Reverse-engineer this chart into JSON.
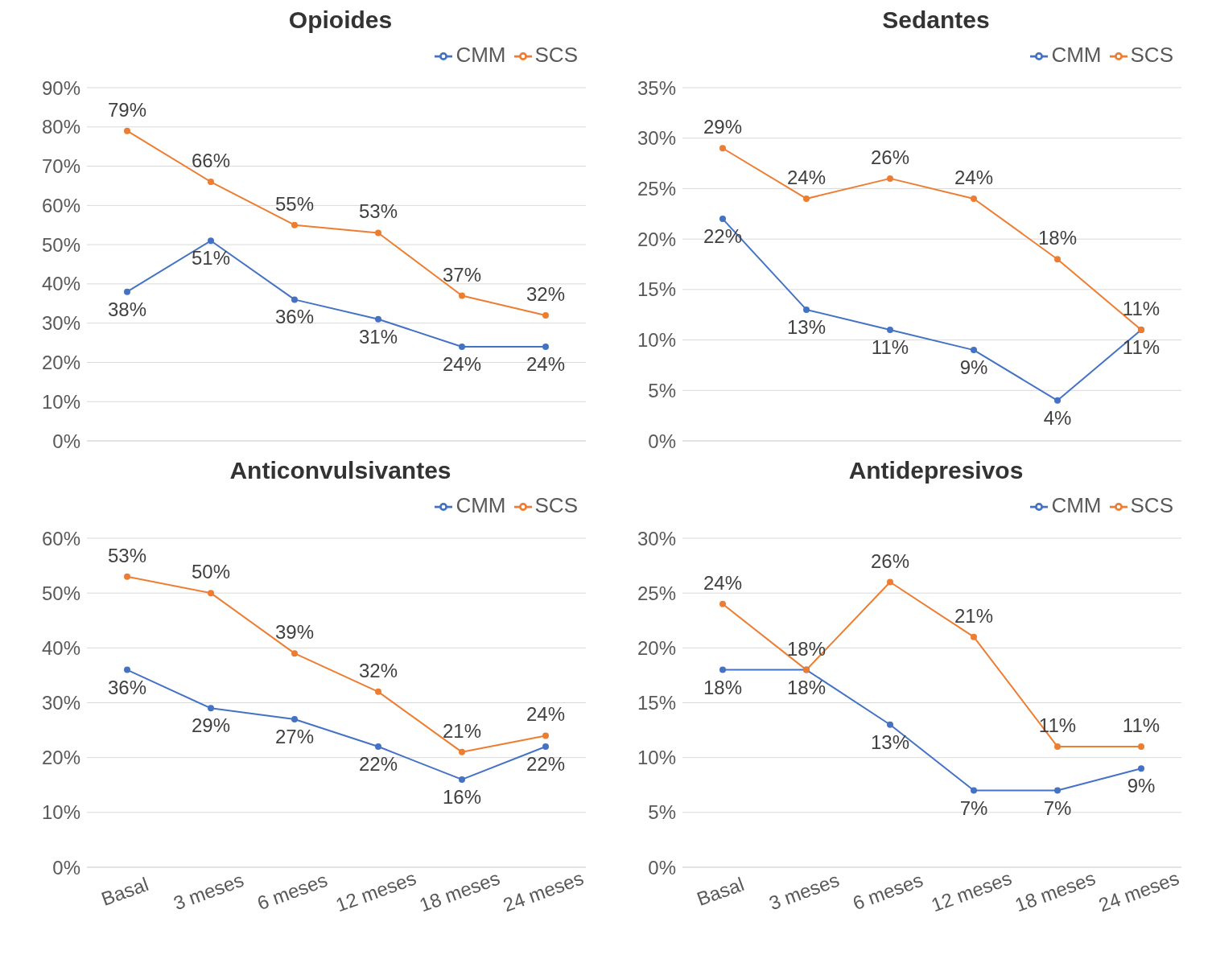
{
  "chart_data": [
    {
      "type": "line",
      "title": "Opioides",
      "categories": [
        null,
        null,
        null,
        null,
        null,
        null
      ],
      "tick_labels": "y",
      "ylim": [
        0,
        90
      ],
      "yticks": [
        {
          "value": 0,
          "label": "0%"
        },
        {
          "value": 10,
          "label": "10%"
        },
        {
          "value": 20,
          "label": "20%"
        },
        {
          "value": 30,
          "label": "30%"
        },
        {
          "value": 40,
          "label": "40%"
        },
        {
          "value": 50,
          "label": "50%"
        },
        {
          "value": 60,
          "label": "60%"
        },
        {
          "value": 70,
          "label": "70%"
        },
        {
          "value": 80,
          "label": "80%"
        },
        {
          "value": 90,
          "label": "90%"
        }
      ],
      "grid": "y",
      "legend": "top right",
      "marker": "circle",
      "line_style": "solid",
      "series": [
        {
          "name": "CMM",
          "color": "#4472c4",
          "values": [
            38,
            51,
            36,
            31,
            24,
            24
          ],
          "value_labels": [
            "38%",
            "51%",
            "36%",
            "31%",
            "24%",
            "24%"
          ]
        },
        {
          "name": "SCS",
          "color": "#ed7d31",
          "values": [
            79,
            66,
            55,
            53,
            37,
            32
          ],
          "value_labels": [
            "79%",
            "66%",
            "55%",
            "53%",
            "37%",
            "32%"
          ]
        }
      ]
    },
    {
      "type": "line",
      "title": "Sedantes",
      "categories": [
        null,
        null,
        null,
        null,
        null,
        null
      ],
      "tick_labels": "y",
      "ylim": [
        0,
        35
      ],
      "yticks": [
        {
          "value": 0,
          "label": "0%"
        },
        {
          "value": 5,
          "label": "5%"
        },
        {
          "value": 10,
          "label": "10%"
        },
        {
          "value": 15,
          "label": "15%"
        },
        {
          "value": 20,
          "label": "20%"
        },
        {
          "value": 25,
          "label": "25%"
        },
        {
          "value": 30,
          "label": "30%"
        },
        {
          "value": 35,
          "label": "35%"
        }
      ],
      "grid": "y",
      "legend": "top right",
      "marker": "circle",
      "line_style": "solid",
      "series": [
        {
          "name": "CMM",
          "color": "#4472c4",
          "values": [
            22,
            13,
            11,
            9,
            4,
            11
          ],
          "value_labels": [
            "22%",
            "13%",
            "11%",
            "9%",
            "4%",
            "11%"
          ]
        },
        {
          "name": "SCS",
          "color": "#ed7d31",
          "values": [
            29,
            24,
            26,
            24,
            18,
            11
          ],
          "value_labels": [
            "29%",
            "24%",
            "26%",
            "24%",
            "18%",
            "11%"
          ]
        }
      ]
    },
    {
      "type": "line",
      "title": "Anticonvulsivantes",
      "categories": [
        "Basal",
        "3 meses",
        "6 meses",
        "12 meses",
        "18 meses",
        "24 meses"
      ],
      "ylim": [
        0,
        60
      ],
      "yticks": [
        {
          "value": 0,
          "label": "0%"
        },
        {
          "value": 10,
          "label": "10%"
        },
        {
          "value": 20,
          "label": "20%"
        },
        {
          "value": 30,
          "label": "30%"
        },
        {
          "value": 40,
          "label": "40%"
        },
        {
          "value": 50,
          "label": "50%"
        },
        {
          "value": 60,
          "label": "60%"
        }
      ],
      "grid": "y",
      "legend": "top right",
      "marker": "circle",
      "line_style": "solid",
      "series": [
        {
          "name": "CMM",
          "color": "#4472c4",
          "values": [
            36,
            29,
            27,
            22,
            16,
            22
          ],
          "value_labels": [
            "36%",
            "29%",
            "27%",
            "22%",
            "16%",
            "22%"
          ]
        },
        {
          "name": "SCS",
          "color": "#ed7d31",
          "values": [
            53,
            50,
            39,
            32,
            21,
            24
          ],
          "value_labels": [
            "53%",
            "50%",
            "39%",
            "32%",
            "21%",
            "24%"
          ]
        }
      ]
    },
    {
      "type": "line",
      "title": "Antidepresivos",
      "categories": [
        "Basal",
        "3 meses",
        "6 meses",
        "12 meses",
        "18 meses",
        "24 meses"
      ],
      "ylim": [
        0,
        30
      ],
      "yticks": [
        {
          "value": 0,
          "label": "0%"
        },
        {
          "value": 5,
          "label": "5%"
        },
        {
          "value": 10,
          "label": "10%"
        },
        {
          "value": 15,
          "label": "15%"
        },
        {
          "value": 20,
          "label": "20%"
        },
        {
          "value": 25,
          "label": "25%"
        },
        {
          "value": 30,
          "label": "30%"
        }
      ],
      "grid": "y",
      "legend": "top right",
      "marker": "circle",
      "line_style": "solid",
      "series": [
        {
          "name": "CMM",
          "color": "#4472c4",
          "values": [
            18,
            18,
            13,
            7,
            7,
            9
          ],
          "value_labels": [
            "18%",
            "18%",
            "13%",
            "7%",
            "7%",
            "9%"
          ]
        },
        {
          "name": "SCS",
          "color": "#ed7d31",
          "values": [
            24,
            18,
            26,
            21,
            11,
            11
          ],
          "value_labels": [
            "24%",
            "18%",
            "26%",
            "21%",
            "11%",
            "11%"
          ]
        }
      ]
    }
  ]
}
